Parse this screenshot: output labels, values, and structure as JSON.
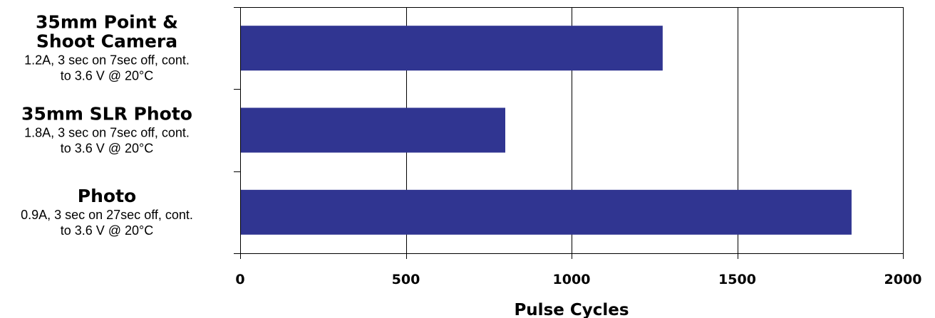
{
  "chart_data": {
    "type": "bar",
    "orientation": "horizontal",
    "categories": [
      {
        "title_lines": [
          "35mm Point &",
          "Shoot Camera"
        ],
        "subtitle_lines": [
          "1.2A, 3 sec on 7sec off, cont.",
          "to 3.6 V @ 20°C"
        ]
      },
      {
        "title_lines": [
          "35mm SLR Photo"
        ],
        "subtitle_lines": [
          "1.8A, 3 sec on 7sec off, cont.",
          "to 3.6 V @ 20°C"
        ]
      },
      {
        "title_lines": [
          "Photo"
        ],
        "subtitle_lines": [
          "0.9A, 3 sec on 27sec off, cont.",
          "to 3.6 V @ 20°C"
        ]
      }
    ],
    "values": [
      1275,
      800,
      1845
    ],
    "xlabel": "Pulse Cycles",
    "xlim": [
      0,
      2000
    ],
    "xticks": [
      0,
      500,
      1000,
      1500,
      2000
    ],
    "xtick_labels": [
      "0",
      "500",
      "1000",
      "1500",
      "2000"
    ],
    "grid": "vertical",
    "legend": "none",
    "bar_color": "#303591"
  }
}
